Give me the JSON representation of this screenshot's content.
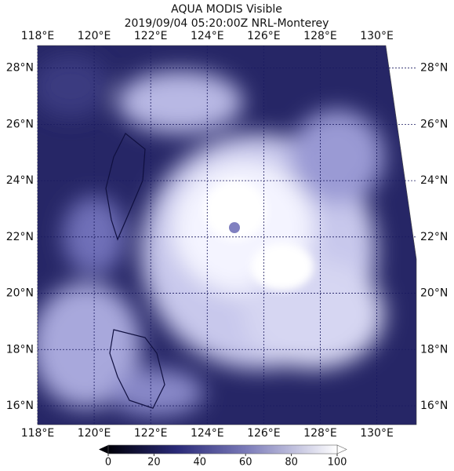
{
  "title": "AQUA MODIS Visible",
  "subtitle": "2019/09/04 05:20:00Z NRL-Monterey",
  "map": {
    "lonlim": [
      118,
      131.4
    ],
    "latlim": [
      15.33,
      28.8
    ],
    "lonticks": [
      {
        "value": 118,
        "label": "118°E"
      },
      {
        "value": 120,
        "label": "120°E"
      },
      {
        "value": 122,
        "label": "122°E"
      },
      {
        "value": 124,
        "label": "124°E"
      },
      {
        "value": 126,
        "label": "126°E"
      },
      {
        "value": 128,
        "label": "128°E"
      },
      {
        "value": 130,
        "label": "130°E"
      }
    ],
    "latticks": [
      {
        "value": 28,
        "label": "28°N"
      },
      {
        "value": 26,
        "label": "26°N"
      },
      {
        "value": 24,
        "label": "24°N"
      },
      {
        "value": 22,
        "label": "22°N"
      },
      {
        "value": 20,
        "label": "20°N"
      },
      {
        "value": 18,
        "label": "18°N"
      },
      {
        "value": 16,
        "label": "16°N"
      }
    ]
  },
  "colorbar": {
    "lim": [
      0,
      100
    ],
    "ticks": [
      0,
      20,
      40,
      60,
      80,
      100
    ]
  }
}
